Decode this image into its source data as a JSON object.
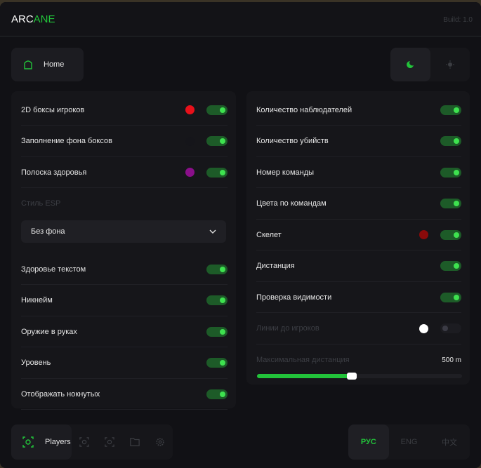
{
  "header": {
    "logo_a": "ARC",
    "logo_b": "ANE",
    "build": "Build: 1.0"
  },
  "nav": {
    "home": "Home"
  },
  "colors": {
    "accent": "#22c33a"
  },
  "left": {
    "rows": [
      {
        "label": "2D боксы игроков",
        "color": "#e8101a",
        "on": true
      },
      {
        "label": "Заполнение фона боксов",
        "color": "#15151a",
        "on": true
      },
      {
        "label": "Полоска здоровья",
        "color": "#8a0f8a",
        "on": true
      }
    ],
    "style_label": "Стиль ESP",
    "style_value": "Без фона",
    "rows2": [
      {
        "label": "Здоровье текстом",
        "on": true
      },
      {
        "label": "Никнейм",
        "on": true
      },
      {
        "label": "Оружие в руках",
        "on": true
      },
      {
        "label": "Уровень",
        "on": true
      },
      {
        "label": "Отображать нокнутых",
        "on": true
      }
    ]
  },
  "right": {
    "rows": [
      {
        "label": "Количество наблюдателей",
        "on": true
      },
      {
        "label": "Количество убийств",
        "on": true
      },
      {
        "label": "Номер команды",
        "on": true
      },
      {
        "label": "Цвета по командам",
        "on": true
      },
      {
        "label": "Скелет",
        "color": "#8a0a0a",
        "on": true
      },
      {
        "label": "Дистанция",
        "on": true
      },
      {
        "label": "Проверка видимости",
        "on": true
      },
      {
        "label": "Линии до игроков",
        "color": "#ffffff",
        "on": false
      }
    ],
    "slider_label": "Максимальная дистанция",
    "slider_value": "500 m",
    "slider_fraction": 0.46
  },
  "bottom": {
    "players": "Players",
    "icons": [
      "eye-scan-icon",
      "eye-scan-icon",
      "folder-icon",
      "gear-icon"
    ]
  },
  "lang": {
    "items": [
      "РУС",
      "ENG",
      "中文"
    ],
    "active": 0
  }
}
